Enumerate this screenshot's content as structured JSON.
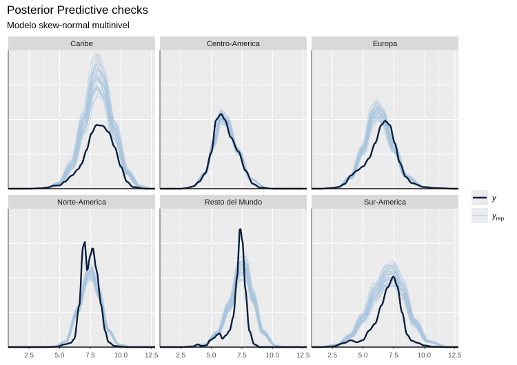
{
  "chart_data": {
    "type": "density-overlay",
    "title": "Posterior Predictive checks",
    "subtitle": "Modelo skew-normal multinivel",
    "xlim": [
      0.8,
      12.8
    ],
    "x_ticks": [
      "2.5",
      "5.0",
      "7.5",
      "10.0",
      "12.5"
    ],
    "x_tick_values": [
      2.5,
      5.0,
      7.5,
      10.0,
      12.5
    ],
    "ylim": [
      0,
      1
    ],
    "grid": true,
    "legend": {
      "placement": "right",
      "entries": [
        {
          "key": "y",
          "label": "y",
          "color": "#0b1f3f"
        },
        {
          "key": "yrep",
          "label": "y",
          "subscript": "rep",
          "color": "#b5cde0"
        }
      ]
    },
    "panels": [
      {
        "name": "Caribe",
        "y": [
          [
            2.5,
            0
          ],
          [
            3.5,
            0.003
          ],
          [
            4.0,
            0.008
          ],
          [
            4.5,
            0.022
          ],
          [
            5.0,
            0.024
          ],
          [
            5.4,
            0.05
          ],
          [
            6.0,
            0.095
          ],
          [
            6.5,
            0.14
          ],
          [
            6.8,
            0.18
          ],
          [
            7.2,
            0.28
          ],
          [
            7.6,
            0.4
          ],
          [
            8.0,
            0.46
          ],
          [
            8.5,
            0.455
          ],
          [
            9.0,
            0.41
          ],
          [
            9.5,
            0.3
          ],
          [
            10.0,
            0.16
          ],
          [
            10.5,
            0.05
          ],
          [
            11.0,
            0.012
          ],
          [
            12.0,
            0
          ]
        ],
        "yrep_mean": [
          [
            2.5,
            0
          ],
          [
            4.0,
            0.006
          ],
          [
            5.0,
            0.04
          ],
          [
            6.0,
            0.17
          ],
          [
            7.0,
            0.48
          ],
          [
            7.8,
            0.78
          ],
          [
            8.1,
            0.82
          ],
          [
            8.5,
            0.76
          ],
          [
            9.5,
            0.42
          ],
          [
            10.5,
            0.12
          ],
          [
            11.5,
            0.02
          ],
          [
            12.5,
            0
          ]
        ],
        "yrep_band": [
          0.16,
          0.09
        ]
      },
      {
        "name": "Centro-America",
        "y": [
          [
            2.5,
            0
          ],
          [
            3.0,
            0.004
          ],
          [
            3.5,
            0.016
          ],
          [
            4.0,
            0.05
          ],
          [
            4.5,
            0.11
          ],
          [
            5.0,
            0.26
          ],
          [
            5.4,
            0.5
          ],
          [
            5.8,
            0.54
          ],
          [
            6.1,
            0.5
          ],
          [
            6.6,
            0.37
          ],
          [
            7.2,
            0.27
          ],
          [
            7.8,
            0.13
          ],
          [
            8.4,
            0.035
          ],
          [
            9.0,
            0.008
          ],
          [
            10.0,
            0
          ]
        ],
        "yrep_mean": [
          [
            2.5,
            0
          ],
          [
            3.5,
            0.015
          ],
          [
            4.5,
            0.11
          ],
          [
            5.2,
            0.33
          ],
          [
            5.8,
            0.52
          ],
          [
            6.3,
            0.48
          ],
          [
            7.2,
            0.27
          ],
          [
            8.2,
            0.07
          ],
          [
            9.5,
            0.006
          ],
          [
            10.5,
            0
          ]
        ],
        "yrep_band": [
          0.06,
          0.04
        ]
      },
      {
        "name": "Europa",
        "y": [
          [
            1.5,
            0
          ],
          [
            2.5,
            0.004
          ],
          [
            3.0,
            0.012
          ],
          [
            3.5,
            0.034
          ],
          [
            4.0,
            0.095
          ],
          [
            4.5,
            0.13
          ],
          [
            5.0,
            0.16
          ],
          [
            5.5,
            0.22
          ],
          [
            6.0,
            0.33
          ],
          [
            6.5,
            0.46
          ],
          [
            6.8,
            0.49
          ],
          [
            7.2,
            0.46
          ],
          [
            7.6,
            0.33
          ],
          [
            8.0,
            0.19
          ],
          [
            8.5,
            0.085
          ],
          [
            9.0,
            0.04
          ],
          [
            10.0,
            0.012
          ],
          [
            11.0,
            0.004
          ],
          [
            12.5,
            0
          ]
        ],
        "yrep_mean": [
          [
            1.5,
            0
          ],
          [
            3.0,
            0.012
          ],
          [
            4.0,
            0.08
          ],
          [
            5.0,
            0.28
          ],
          [
            5.8,
            0.52
          ],
          [
            6.1,
            0.56
          ],
          [
            6.6,
            0.52
          ],
          [
            7.5,
            0.3
          ],
          [
            8.5,
            0.09
          ],
          [
            10.0,
            0.01
          ],
          [
            12.5,
            0
          ]
        ],
        "yrep_band": [
          0.11,
          0.07
        ]
      },
      {
        "name": "Norte-America",
        "y": [
          [
            4.0,
            0
          ],
          [
            4.8,
            0.003
          ],
          [
            5.4,
            0.02
          ],
          [
            5.9,
            0.03
          ],
          [
            6.2,
            0.06
          ],
          [
            6.6,
            0.3
          ],
          [
            6.9,
            0.72
          ],
          [
            7.05,
            0.76
          ],
          [
            7.25,
            0.55
          ],
          [
            7.5,
            0.66
          ],
          [
            7.7,
            0.72
          ],
          [
            8.0,
            0.56
          ],
          [
            8.4,
            0.3
          ],
          [
            8.7,
            0.12
          ],
          [
            9.0,
            0.035
          ],
          [
            9.5,
            0.008
          ],
          [
            10.5,
            0
          ]
        ],
        "yrep_mean": [
          [
            3.5,
            0
          ],
          [
            4.5,
            0.004
          ],
          [
            5.5,
            0.04
          ],
          [
            6.5,
            0.27
          ],
          [
            7.3,
            0.52
          ],
          [
            7.6,
            0.54
          ],
          [
            8.2,
            0.39
          ],
          [
            9.0,
            0.12
          ],
          [
            9.8,
            0.02
          ],
          [
            11.0,
            0
          ]
        ],
        "yrep_band": [
          0.07,
          0.04
        ]
      },
      {
        "name": "Resto del Mundo",
        "y": [
          [
            2.5,
            0
          ],
          [
            3.5,
            0.003
          ],
          [
            3.9,
            0.02
          ],
          [
            4.2,
            0.008
          ],
          [
            4.6,
            0.012
          ],
          [
            4.9,
            0.05
          ],
          [
            5.2,
            0.065
          ],
          [
            5.5,
            0.09
          ],
          [
            5.7,
            0.1
          ],
          [
            5.9,
            0.06
          ],
          [
            6.2,
            0.085
          ],
          [
            6.5,
            0.12
          ],
          [
            6.8,
            0.22
          ],
          [
            7.1,
            0.5
          ],
          [
            7.35,
            0.87
          ],
          [
            7.55,
            0.76
          ],
          [
            7.8,
            0.4
          ],
          [
            8.1,
            0.12
          ],
          [
            8.5,
            0.02
          ],
          [
            9.0,
            0
          ],
          [
            10.0,
            0
          ]
        ],
        "yrep_mean": [
          [
            2.5,
            0
          ],
          [
            4.5,
            0.02
          ],
          [
            5.5,
            0.1
          ],
          [
            6.5,
            0.3
          ],
          [
            7.3,
            0.56
          ],
          [
            7.8,
            0.57
          ],
          [
            8.4,
            0.36
          ],
          [
            9.2,
            0.11
          ],
          [
            10.2,
            0.012
          ],
          [
            11.0,
            0
          ]
        ],
        "yrep_band": [
          0.12,
          0.06
        ]
      },
      {
        "name": "Sur-America",
        "y": [
          [
            1.5,
            0
          ],
          [
            2.5,
            0.004
          ],
          [
            3.5,
            0.03
          ],
          [
            4.0,
            0.05
          ],
          [
            4.5,
            0.035
          ],
          [
            5.0,
            0.05
          ],
          [
            5.5,
            0.12
          ],
          [
            6.0,
            0.17
          ],
          [
            6.5,
            0.3
          ],
          [
            7.0,
            0.43
          ],
          [
            7.5,
            0.51
          ],
          [
            7.8,
            0.44
          ],
          [
            8.2,
            0.25
          ],
          [
            8.6,
            0.09
          ],
          [
            9.0,
            0.045
          ],
          [
            9.5,
            0.03
          ],
          [
            10.0,
            0.012
          ],
          [
            10.8,
            0.002
          ],
          [
            12.0,
            0
          ]
        ],
        "yrep_mean": [
          [
            1.5,
            0
          ],
          [
            3.0,
            0.02
          ],
          [
            4.0,
            0.08
          ],
          [
            5.0,
            0.21
          ],
          [
            6.0,
            0.39
          ],
          [
            7.0,
            0.52
          ],
          [
            7.5,
            0.53
          ],
          [
            8.2,
            0.42
          ],
          [
            9.2,
            0.18
          ],
          [
            10.3,
            0.04
          ],
          [
            12.0,
            0
          ]
        ],
        "yrep_band": [
          0.15,
          0.09
        ]
      }
    ]
  }
}
